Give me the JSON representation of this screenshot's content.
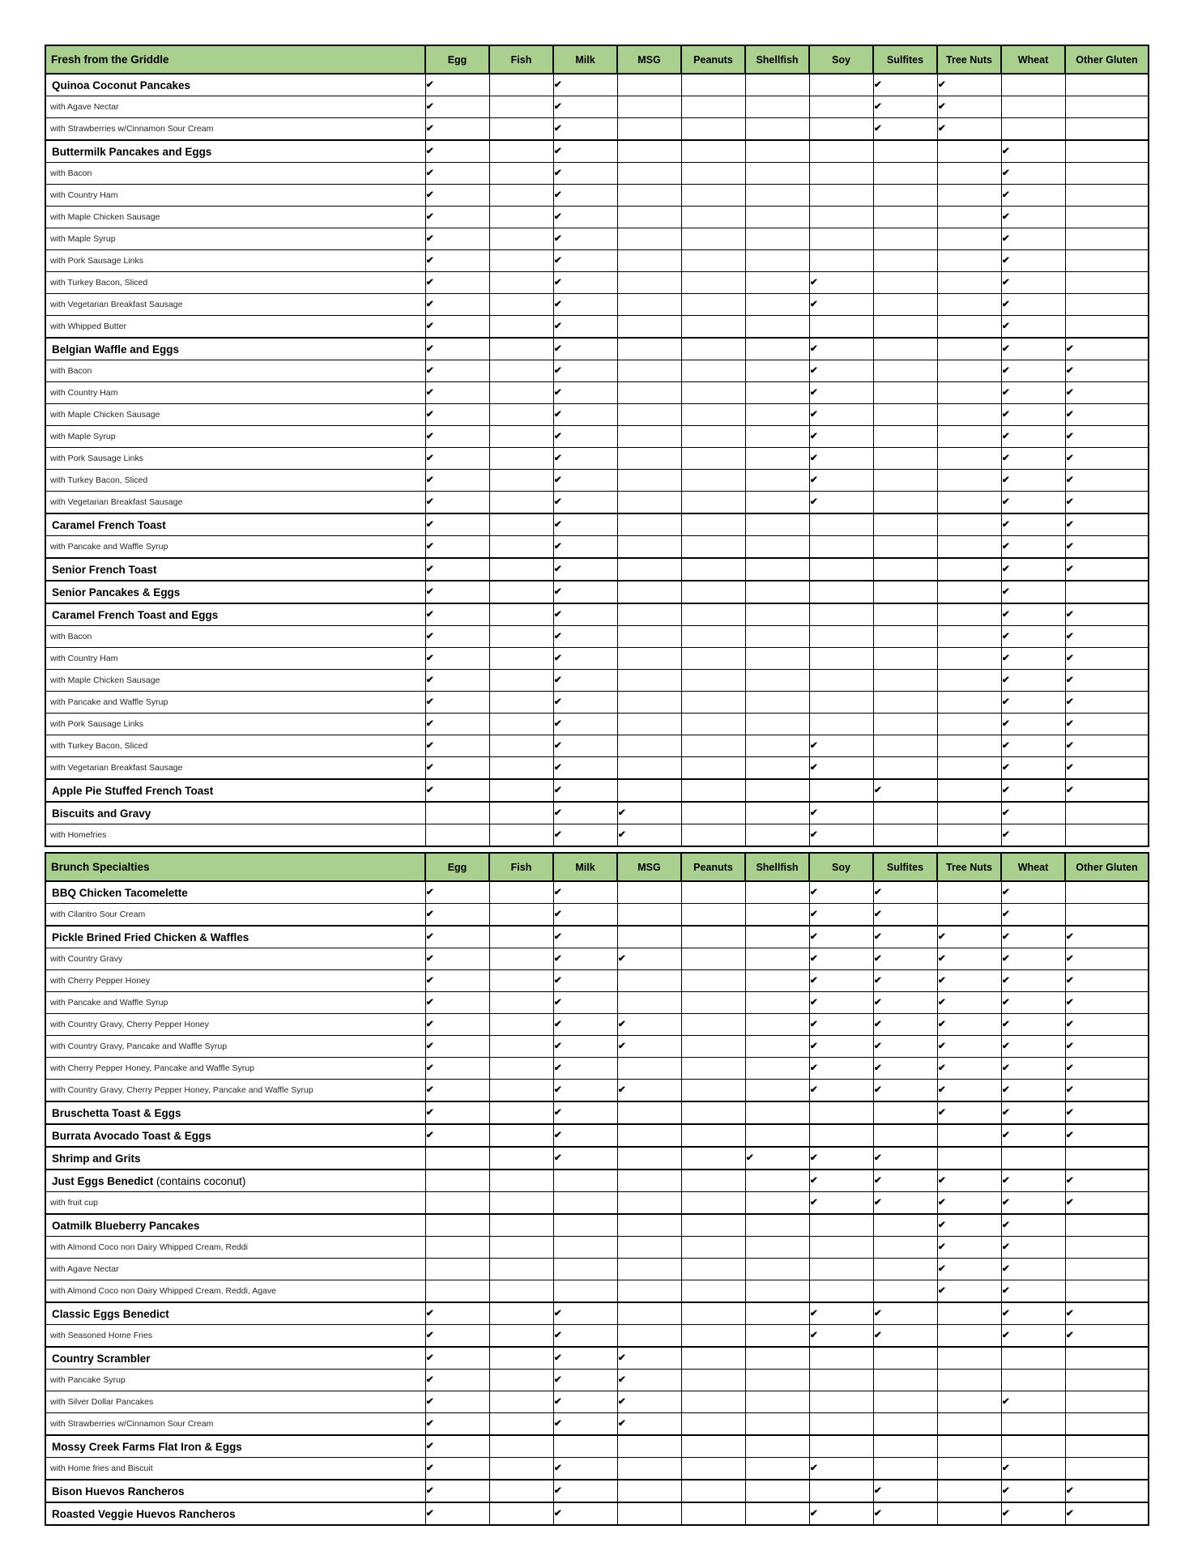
{
  "colors": {
    "header_bg": "#a9d08e",
    "border": "#000000",
    "text": "#000000"
  },
  "checkmark_glyph": "✔",
  "columns": [
    "Egg",
    "Fish",
    "Milk",
    "MSG",
    "Peanuts",
    "Shellfish",
    "Soy",
    "Sulfites",
    "Tree Nuts",
    "Wheat",
    "Other Gluten"
  ],
  "tables": [
    {
      "title": "Fresh from the Griddle",
      "rows": [
        {
          "name": "Quinoa Coconut Pancakes",
          "bold": true,
          "note": "",
          "allergens": [
            "Egg",
            "Milk",
            "Sulfites",
            "Tree Nuts"
          ]
        },
        {
          "name": "with Agave Nectar",
          "bold": false,
          "note": "",
          "allergens": [
            "Egg",
            "Milk",
            "Sulfites",
            "Tree Nuts"
          ]
        },
        {
          "name": "with Strawberries w/Cinnamon Sour Cream",
          "bold": false,
          "note": "",
          "allergens": [
            "Egg",
            "Milk",
            "Sulfites",
            "Tree Nuts"
          ]
        },
        {
          "name": "Buttermilk Pancakes and Eggs",
          "bold": true,
          "note": "",
          "allergens": [
            "Egg",
            "Milk",
            "Wheat"
          ]
        },
        {
          "name": "with Bacon",
          "bold": false,
          "note": "",
          "allergens": [
            "Egg",
            "Milk",
            "Wheat"
          ]
        },
        {
          "name": "with Country Ham",
          "bold": false,
          "note": "",
          "allergens": [
            "Egg",
            "Milk",
            "Wheat"
          ]
        },
        {
          "name": "with Maple Chicken Sausage",
          "bold": false,
          "note": "",
          "allergens": [
            "Egg",
            "Milk",
            "Wheat"
          ]
        },
        {
          "name": "with Maple Syrup",
          "bold": false,
          "note": "",
          "allergens": [
            "Egg",
            "Milk",
            "Wheat"
          ]
        },
        {
          "name": "with Pork Sausage Links",
          "bold": false,
          "note": "",
          "allergens": [
            "Egg",
            "Milk",
            "Wheat"
          ]
        },
        {
          "name": "with Turkey Bacon, Sliced",
          "bold": false,
          "note": "",
          "allergens": [
            "Egg",
            "Milk",
            "Soy",
            "Wheat"
          ]
        },
        {
          "name": "with Vegetarian Breakfast Sausage",
          "bold": false,
          "note": "",
          "allergens": [
            "Egg",
            "Milk",
            "Soy",
            "Wheat"
          ]
        },
        {
          "name": "with Whipped Butter",
          "bold": false,
          "note": "",
          "allergens": [
            "Egg",
            "Milk",
            "Wheat"
          ]
        },
        {
          "name": "Belgian Waffle and Eggs",
          "bold": true,
          "note": "",
          "allergens": [
            "Egg",
            "Milk",
            "Soy",
            "Wheat",
            "Other Gluten"
          ]
        },
        {
          "name": "with Bacon",
          "bold": false,
          "note": "",
          "allergens": [
            "Egg",
            "Milk",
            "Soy",
            "Wheat",
            "Other Gluten"
          ]
        },
        {
          "name": "with Country Ham",
          "bold": false,
          "note": "",
          "allergens": [
            "Egg",
            "Milk",
            "Soy",
            "Wheat",
            "Other Gluten"
          ]
        },
        {
          "name": "with Maple Chicken Sausage",
          "bold": false,
          "note": "",
          "allergens": [
            "Egg",
            "Milk",
            "Soy",
            "Wheat",
            "Other Gluten"
          ]
        },
        {
          "name": "with Maple Syrup",
          "bold": false,
          "note": "",
          "allergens": [
            "Egg",
            "Milk",
            "Soy",
            "Wheat",
            "Other Gluten"
          ]
        },
        {
          "name": "with Pork Sausage Links",
          "bold": false,
          "note": "",
          "allergens": [
            "Egg",
            "Milk",
            "Soy",
            "Wheat",
            "Other Gluten"
          ]
        },
        {
          "name": "with Turkey Bacon, Sliced",
          "bold": false,
          "note": "",
          "allergens": [
            "Egg",
            "Milk",
            "Soy",
            "Wheat",
            "Other Gluten"
          ]
        },
        {
          "name": "with Vegetarian Breakfast Sausage",
          "bold": false,
          "note": "",
          "allergens": [
            "Egg",
            "Milk",
            "Soy",
            "Wheat",
            "Other Gluten"
          ]
        },
        {
          "name": "Caramel French Toast",
          "bold": true,
          "note": "",
          "allergens": [
            "Egg",
            "Milk",
            "Wheat",
            "Other Gluten"
          ]
        },
        {
          "name": "with Pancake and Waffle Syrup",
          "bold": false,
          "note": "",
          "allergens": [
            "Egg",
            "Milk",
            "Wheat",
            "Other Gluten"
          ]
        },
        {
          "name": "Senior French Toast",
          "bold": true,
          "note": "",
          "allergens": [
            "Egg",
            "Milk",
            "Wheat",
            "Other Gluten"
          ]
        },
        {
          "name": "Senior Pancakes & Eggs",
          "bold": true,
          "note": "",
          "allergens": [
            "Egg",
            "Milk",
            "Wheat"
          ]
        },
        {
          "name": "Caramel French Toast and Eggs",
          "bold": true,
          "note": "",
          "allergens": [
            "Egg",
            "Milk",
            "Wheat",
            "Other Gluten"
          ]
        },
        {
          "name": "with Bacon",
          "bold": false,
          "note": "",
          "allergens": [
            "Egg",
            "Milk",
            "Wheat",
            "Other Gluten"
          ]
        },
        {
          "name": "with Country Ham",
          "bold": false,
          "note": "",
          "allergens": [
            "Egg",
            "Milk",
            "Wheat",
            "Other Gluten"
          ]
        },
        {
          "name": "with Maple Chicken Sausage",
          "bold": false,
          "note": "",
          "allergens": [
            "Egg",
            "Milk",
            "Wheat",
            "Other Gluten"
          ]
        },
        {
          "name": "with Pancake and Waffle Syrup",
          "bold": false,
          "note": "",
          "allergens": [
            "Egg",
            "Milk",
            "Wheat",
            "Other Gluten"
          ]
        },
        {
          "name": "with Pork Sausage Links",
          "bold": false,
          "note": "",
          "allergens": [
            "Egg",
            "Milk",
            "Wheat",
            "Other Gluten"
          ]
        },
        {
          "name": "with Turkey Bacon, Sliced",
          "bold": false,
          "note": "",
          "allergens": [
            "Egg",
            "Milk",
            "Soy",
            "Wheat",
            "Other Gluten"
          ]
        },
        {
          "name": "with Vegetarian Breakfast Sausage",
          "bold": false,
          "note": "",
          "allergens": [
            "Egg",
            "Milk",
            "Soy",
            "Wheat",
            "Other Gluten"
          ]
        },
        {
          "name": "Apple Pie Stuffed French Toast",
          "bold": true,
          "note": "",
          "allergens": [
            "Egg",
            "Milk",
            "Sulfites",
            "Wheat",
            "Other Gluten"
          ]
        },
        {
          "name": "Biscuits and Gravy",
          "bold": true,
          "note": "",
          "allergens": [
            "Milk",
            "MSG",
            "Soy",
            "Wheat"
          ]
        },
        {
          "name": "with Homefries",
          "bold": false,
          "note": "",
          "allergens": [
            "Milk",
            "MSG",
            "Soy",
            "Wheat"
          ]
        }
      ]
    },
    {
      "title": "Brunch Specialties",
      "rows": [
        {
          "name": "BBQ Chicken Tacomelette",
          "bold": true,
          "note": "",
          "allergens": [
            "Egg",
            "Milk",
            "Soy",
            "Sulfites",
            "Wheat"
          ]
        },
        {
          "name": "with Cilantro Sour Cream",
          "bold": false,
          "note": "",
          "allergens": [
            "Egg",
            "Milk",
            "Soy",
            "Sulfites",
            "Wheat"
          ]
        },
        {
          "name": "Pickle Brined Fried Chicken & Waffles",
          "bold": true,
          "note": "",
          "allergens": [
            "Egg",
            "Milk",
            "Soy",
            "Sulfites",
            "Tree Nuts",
            "Wheat",
            "Other Gluten"
          ]
        },
        {
          "name": "with Country Gravy",
          "bold": false,
          "note": "",
          "allergens": [
            "Egg",
            "Milk",
            "MSG",
            "Soy",
            "Sulfites",
            "Tree Nuts",
            "Wheat",
            "Other Gluten"
          ]
        },
        {
          "name": "with Cherry Pepper Honey",
          "bold": false,
          "note": "",
          "allergens": [
            "Egg",
            "Milk",
            "Soy",
            "Sulfites",
            "Tree Nuts",
            "Wheat",
            "Other Gluten"
          ]
        },
        {
          "name": "with Pancake and Waffle Syrup",
          "bold": false,
          "note": "",
          "allergens": [
            "Egg",
            "Milk",
            "Soy",
            "Sulfites",
            "Tree Nuts",
            "Wheat",
            "Other Gluten"
          ]
        },
        {
          "name": "with Country Gravy, Cherry Pepper Honey",
          "bold": false,
          "note": "",
          "allergens": [
            "Egg",
            "Milk",
            "MSG",
            "Soy",
            "Sulfites",
            "Tree Nuts",
            "Wheat",
            "Other Gluten"
          ]
        },
        {
          "name": "with Country Gravy, Pancake and Waffle Syrup",
          "bold": false,
          "note": "",
          "allergens": [
            "Egg",
            "Milk",
            "MSG",
            "Soy",
            "Sulfites",
            "Tree Nuts",
            "Wheat",
            "Other Gluten"
          ]
        },
        {
          "name": "with Cherry Pepper Honey, Pancake and Waffle Syrup",
          "bold": false,
          "note": "",
          "allergens": [
            "Egg",
            "Milk",
            "Soy",
            "Sulfites",
            "Tree Nuts",
            "Wheat",
            "Other Gluten"
          ]
        },
        {
          "name": "with Country Gravy, Cherry Pepper Honey, Pancake and Waffle Syrup",
          "bold": false,
          "note": "",
          "allergens": [
            "Egg",
            "Milk",
            "MSG",
            "Soy",
            "Sulfites",
            "Tree Nuts",
            "Wheat",
            "Other Gluten"
          ]
        },
        {
          "name": "Bruschetta Toast & Eggs",
          "bold": true,
          "note": "",
          "allergens": [
            "Egg",
            "Milk",
            "Tree Nuts",
            "Wheat",
            "Other Gluten"
          ]
        },
        {
          "name": "Burrata Avocado Toast & Eggs",
          "bold": true,
          "note": "",
          "allergens": [
            "Egg",
            "Milk",
            "Wheat",
            "Other Gluten"
          ]
        },
        {
          "name": "Shrimp and Grits",
          "bold": true,
          "note": "",
          "allergens": [
            "Milk",
            "Shellfish",
            "Soy",
            "Sulfites"
          ]
        },
        {
          "name": "Just Eggs Benedict",
          "bold": true,
          "note": " (contains coconut)",
          "allergens": [
            "Soy",
            "Sulfites",
            "Tree Nuts",
            "Wheat",
            "Other Gluten"
          ]
        },
        {
          "name": "with fruit cup",
          "bold": false,
          "note": "",
          "allergens": [
            "Soy",
            "Sulfites",
            "Tree Nuts",
            "Wheat",
            "Other Gluten"
          ]
        },
        {
          "name": "Oatmilk Blueberry Pancakes",
          "bold": true,
          "note": "",
          "allergens": [
            "Tree Nuts",
            "Wheat"
          ]
        },
        {
          "name": "with Almond Coco non Dairy Whipped Cream, Reddi",
          "bold": false,
          "note": "",
          "allergens": [
            "Tree Nuts",
            "Wheat"
          ]
        },
        {
          "name": "with Agave Nectar",
          "bold": false,
          "note": "",
          "allergens": [
            "Tree Nuts",
            "Wheat"
          ]
        },
        {
          "name": "with Almond Coco non Dairy Whipped Cream, Reddi, Agave",
          "bold": false,
          "note": "",
          "allergens": [
            "Tree Nuts",
            "Wheat"
          ]
        },
        {
          "name": "Classic Eggs Benedict",
          "bold": true,
          "note": "",
          "allergens": [
            "Egg",
            "Milk",
            "Soy",
            "Sulfites",
            "Wheat",
            "Other Gluten"
          ]
        },
        {
          "name": "with Seasoned Home Fries",
          "bold": false,
          "note": "",
          "allergens": [
            "Egg",
            "Milk",
            "Soy",
            "Sulfites",
            "Wheat",
            "Other Gluten"
          ]
        },
        {
          "name": "Country Scrambler",
          "bold": true,
          "note": "",
          "allergens": [
            "Egg",
            "Milk",
            "MSG"
          ]
        },
        {
          "name": "with Pancake Syrup",
          "bold": false,
          "note": "",
          "allergens": [
            "Egg",
            "Milk",
            "MSG"
          ]
        },
        {
          "name": "with Silver Dollar Pancakes",
          "bold": false,
          "note": "",
          "allergens": [
            "Egg",
            "Milk",
            "MSG",
            "Wheat"
          ]
        },
        {
          "name": "with Strawberries w/Cinnamon Sour Cream",
          "bold": false,
          "note": "",
          "allergens": [
            "Egg",
            "Milk",
            "MSG"
          ]
        },
        {
          "name": "Mossy Creek Farms Flat Iron & Eggs",
          "bold": true,
          "note": "",
          "allergens": [
            "Egg"
          ]
        },
        {
          "name": "with Home fries and Biscuit",
          "bold": false,
          "note": "",
          "allergens": [
            "Egg",
            "Milk",
            "Soy",
            "Wheat"
          ]
        },
        {
          "name": "Bison Huevos Rancheros",
          "bold": true,
          "note": "",
          "allergens": [
            "Egg",
            "Milk",
            "Sulfites",
            "Wheat",
            "Other Gluten"
          ]
        },
        {
          "name": "Roasted Veggie Huevos Rancheros",
          "bold": true,
          "note": "",
          "allergens": [
            "Egg",
            "Milk",
            "Soy",
            "Sulfites",
            "Wheat",
            "Other Gluten"
          ]
        }
      ]
    }
  ]
}
